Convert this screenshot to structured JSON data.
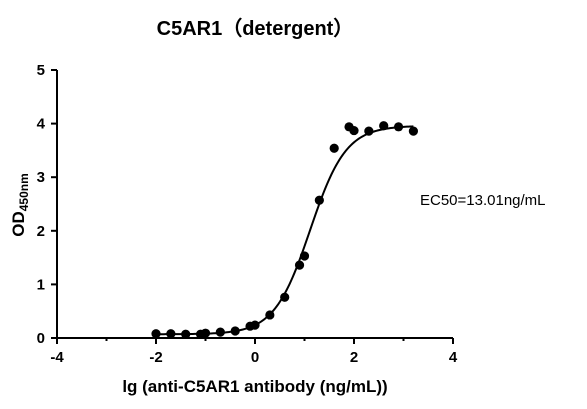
{
  "chart_data": {
    "type": "scatter",
    "title": "C5AR1（detergent）",
    "ylabel": {
      "main": "OD",
      "sub": "450nm"
    },
    "xlabel": "lg (anti-C5AR1 antibody (ng/mL))",
    "xlim": [
      -4,
      4
    ],
    "ylim": [
      0,
      5
    ],
    "xticks": [
      -4,
      -2,
      0,
      2,
      4
    ],
    "yticks": [
      0,
      1,
      2,
      3,
      4,
      5
    ],
    "xtick_labels": [
      "-4",
      "-2",
      "0",
      "2",
      "4"
    ],
    "ytick_labels": [
      "0",
      "1",
      "2",
      "3",
      "4",
      "5"
    ],
    "annotation": "EC50=13.01ng/mL",
    "series": [
      {
        "points": [
          {
            "x": -2.0,
            "y": 0.08
          },
          {
            "x": -1.7,
            "y": 0.08
          },
          {
            "x": -1.4,
            "y": 0.07
          },
          {
            "x": -1.1,
            "y": 0.07
          },
          {
            "x": -1.0,
            "y": 0.09
          },
          {
            "x": -0.7,
            "y": 0.11
          },
          {
            "x": -0.4,
            "y": 0.13
          },
          {
            "x": -0.1,
            "y": 0.22
          },
          {
            "x": 0.0,
            "y": 0.24
          },
          {
            "x": 0.3,
            "y": 0.43
          },
          {
            "x": 0.6,
            "y": 0.76
          },
          {
            "x": 0.9,
            "y": 1.36
          },
          {
            "x": 1.0,
            "y": 1.53
          },
          {
            "x": 1.3,
            "y": 2.57
          },
          {
            "x": 1.6,
            "y": 3.54
          },
          {
            "x": 1.9,
            "y": 3.94
          },
          {
            "x": 2.0,
            "y": 3.87
          },
          {
            "x": 2.3,
            "y": 3.86
          },
          {
            "x": 2.6,
            "y": 3.96
          },
          {
            "x": 2.9,
            "y": 3.94
          },
          {
            "x": 3.2,
            "y": 3.86
          }
        ]
      }
    ],
    "fit": {
      "model": "4PL",
      "bottom": 0.07,
      "top": 3.96,
      "logEC50": 1.114,
      "hill": 1.2,
      "x_range": [
        -2.0,
        3.2
      ]
    }
  }
}
